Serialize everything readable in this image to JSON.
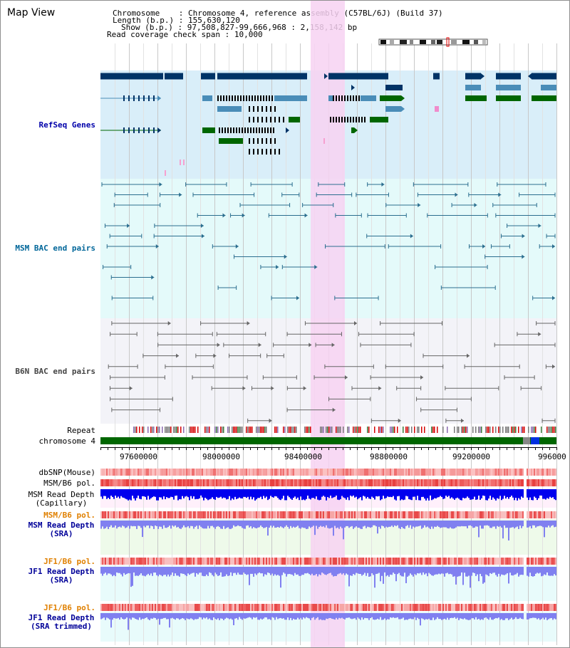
{
  "map_title": "Map View",
  "info": {
    "chromosome_key": "Chromosome",
    "chromosome_val": "Chromosome 4, reference assembly (C57BL/6J) (Build 37)",
    "length_key": "Length (b.p.)",
    "length_val": "155,630,120",
    "show_key": "Show (b.p.)",
    "show_val": "97,508,827-99,666,968 : 2,158,142 bp",
    "span_key": "Read coverage check span",
    "span_val": "10,000"
  },
  "tracks": {
    "refseq": "RefSeq Genes",
    "msm_bac": "MSM BAC end pairs",
    "b6n_bac": "B6N BAC end pairs",
    "repeat": "Repeat",
    "chromosome": "chromosome 4",
    "dbsnp": "dbSNP(Mouse)",
    "msm_pol": "MSM/B6 pol.",
    "msm_depth_cap_1": "MSM Read Depth",
    "msm_depth_cap_2": "(Capillary)",
    "msm_pol_sra": "MSM/B6 pol.",
    "msm_depth_sra_1": "MSM Read Depth",
    "msm_depth_sra_2": "(SRA)",
    "jf1_pol": "JF1/B6 pol.",
    "jf1_depth_1": "JF1 Read Depth",
    "jf1_depth_2": "(SRA)",
    "jf1_pol_trim": "JF1/B6 pol.",
    "jf1_trim_1": "JF1 Read Depth",
    "jf1_trim_2": "(SRA trimmed)"
  },
  "axis_ticks": [
    "97600000",
    "98000000",
    "98400000",
    "98800000",
    "99200000",
    "996000"
  ],
  "colors": {
    "refseq_label": "#0000aa",
    "msm_label": "#006699",
    "b6n_label": "#444444",
    "pol_label": "#e08000",
    "depth_label": "#000099",
    "highlight": "#f7d2f2",
    "gene_dark": "#003366",
    "gene_mid": "#4a8db8",
    "gene_green": "#006600",
    "chromosome_bar": "#006600",
    "capillary_depth": "#0000ee",
    "sra_depth": "#8080f0"
  }
}
